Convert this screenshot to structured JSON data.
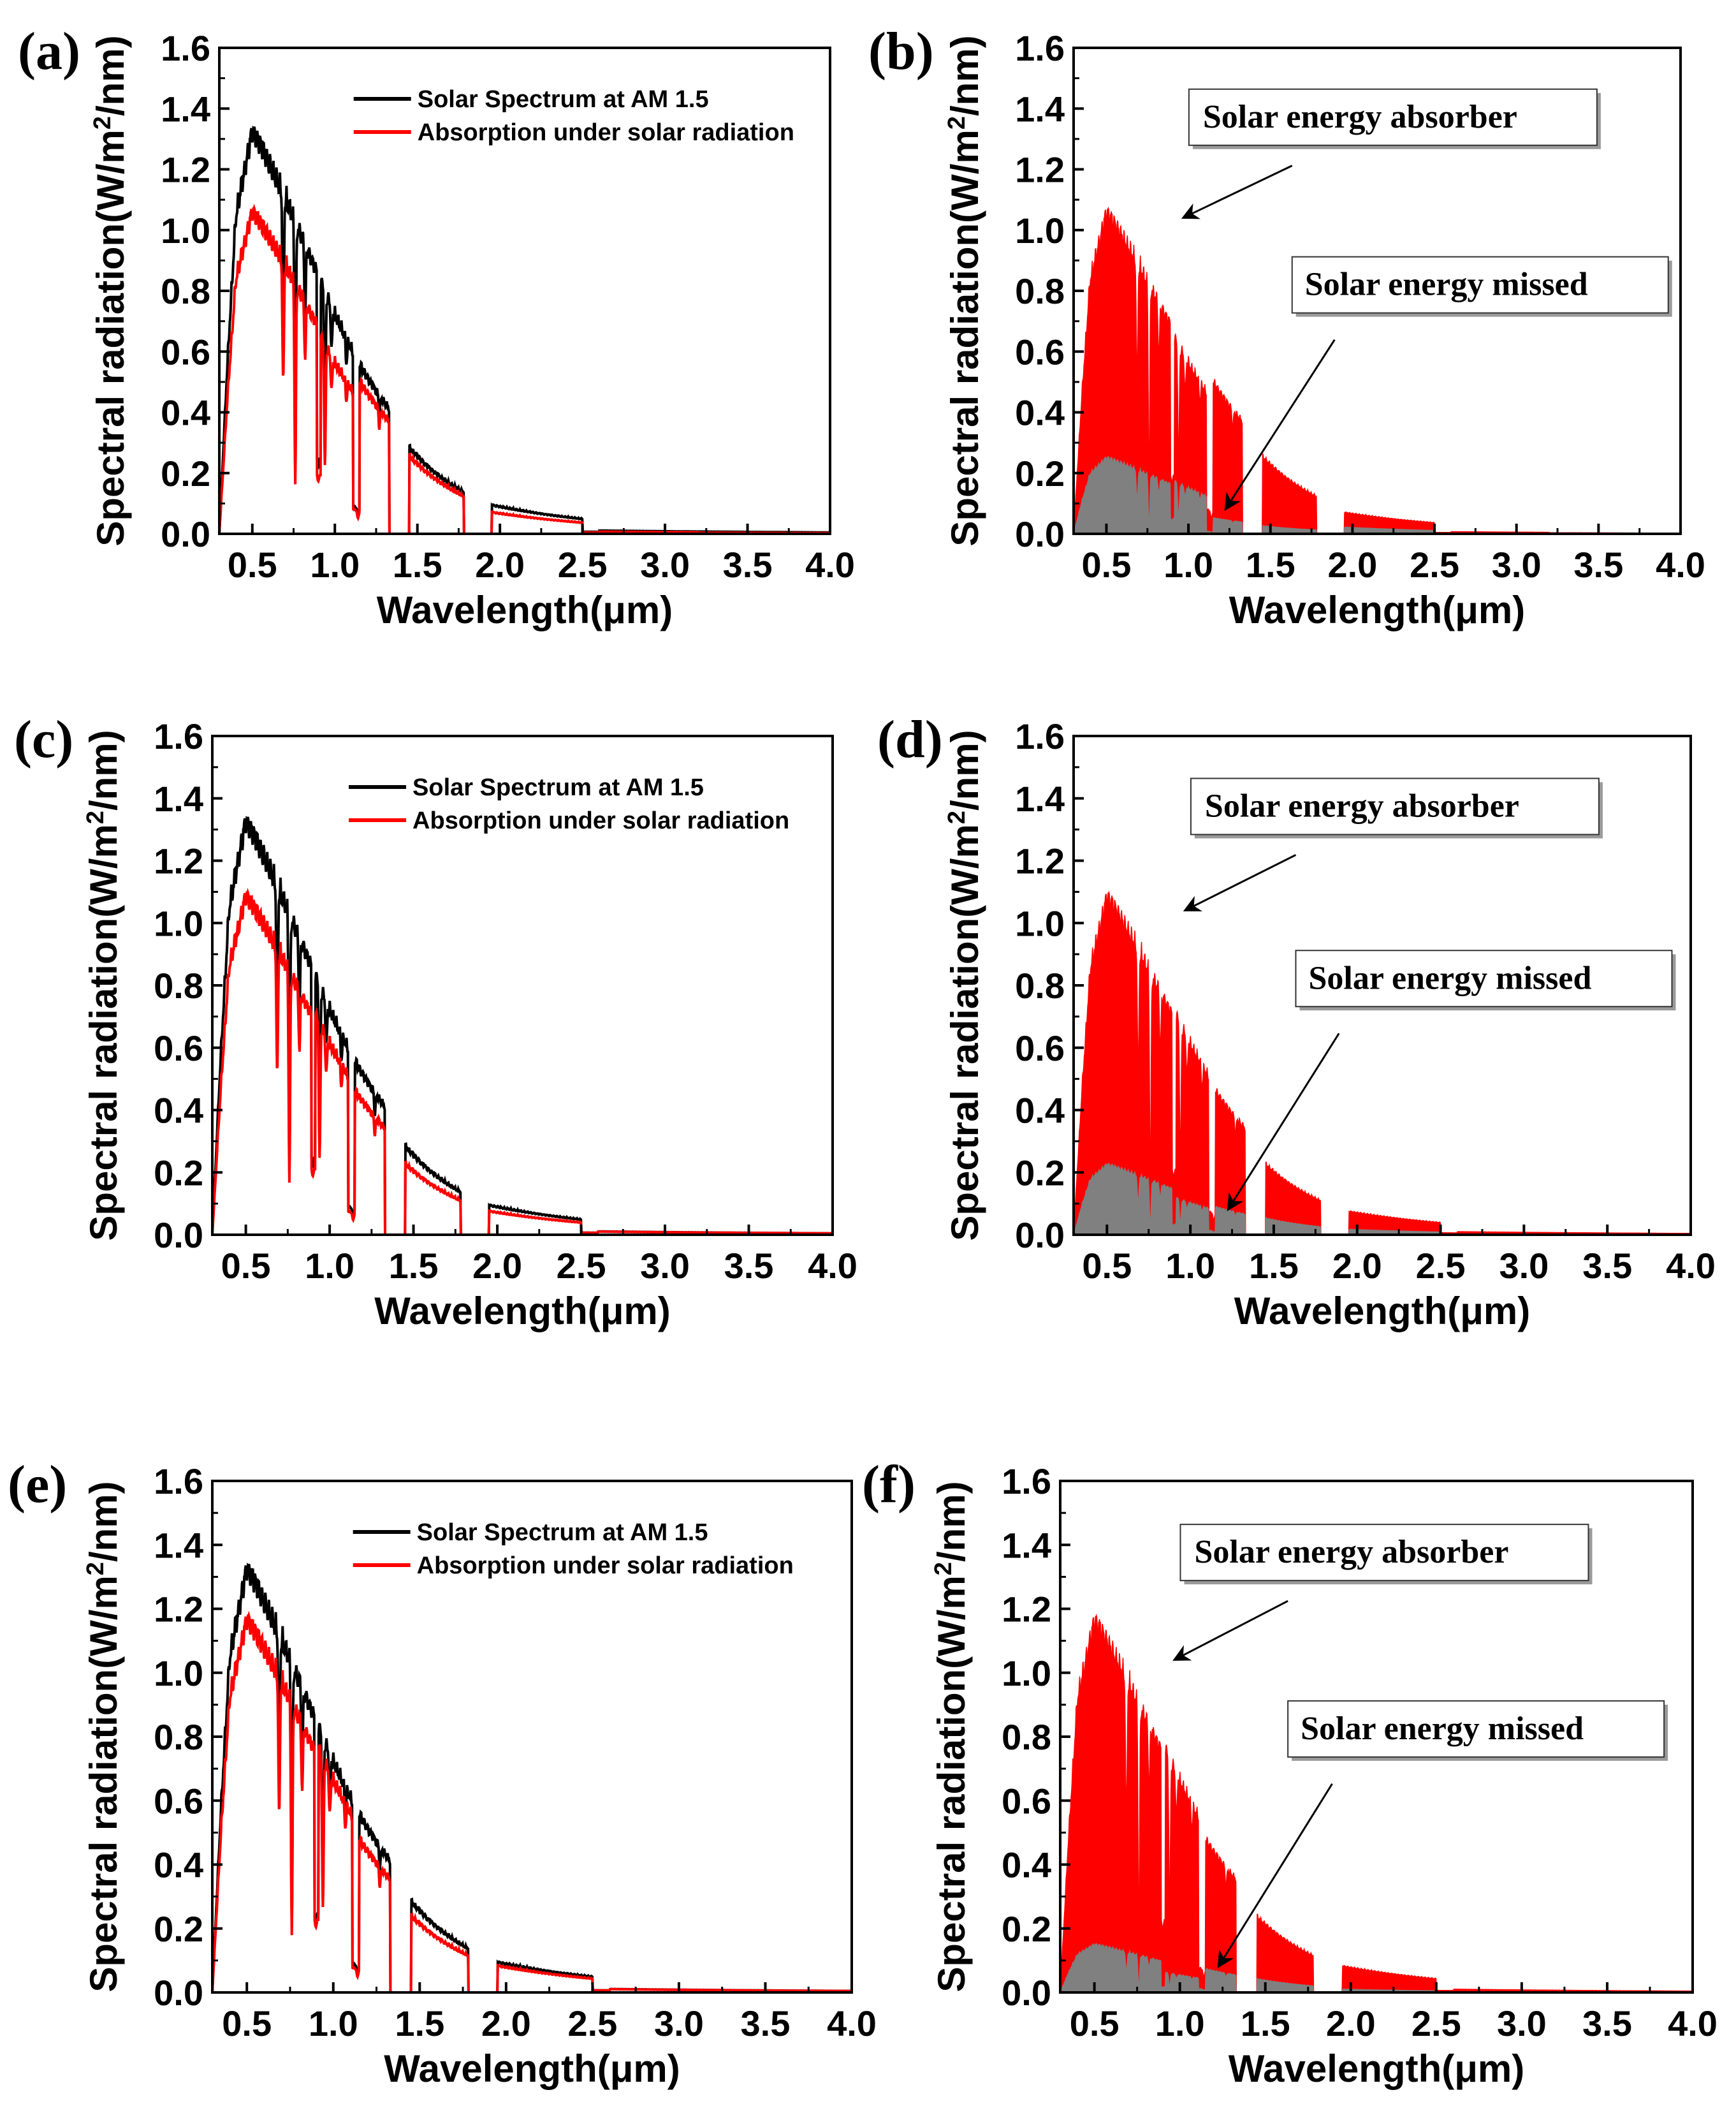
{
  "figure": {
    "axis_title_x": "Wavelength(μm)",
    "axis_title_y_prefix": "Spectral radiation(W/m",
    "axis_title_y_sup": "2",
    "axis_title_y_suffix": "/nm)",
    "legend_black": "Solar Spectrum at AM 1.5",
    "legend_red": "Absorption under solar radiation",
    "annotation_absorber": "Solar energy absorber",
    "annotation_missed": "Solar energy missed",
    "colors": {
      "solar": "#000000",
      "absorbed": "#ff0000",
      "missed": "#808080"
    }
  },
  "chart_data": [
    {
      "panel": "(a)",
      "type": "line",
      "xlim": [
        0.3,
        4.0
      ],
      "ylim": [
        0,
        1.6
      ],
      "xticks": [
        "0.5",
        "1.0",
        "1.5",
        "2.0",
        "2.5",
        "3.0",
        "3.5",
        "4.0"
      ],
      "yticks": [
        "0.0",
        "0.2",
        "0.4",
        "0.6",
        "0.8",
        "1.0",
        "1.2",
        "1.4",
        "1.6"
      ],
      "xlabel": "Wavelength(μm)",
      "ylabel": "Spectral radiation(W/m2/nm)",
      "legend": [
        "Solar Spectrum at AM 1.5",
        "Absorption under solar radiation"
      ],
      "absorption_ratio": [
        0.8,
        0.78,
        0.9,
        0.9,
        0.75,
        0.68,
        0.52
      ]
    },
    {
      "panel": "(b)",
      "type": "area",
      "xlim": [
        0.3,
        4.0
      ],
      "ylim": [
        0,
        1.6
      ],
      "xticks": [
        "0.5",
        "1.0",
        "1.5",
        "2.0",
        "2.5",
        "3.0",
        "3.5",
        "4.0"
      ],
      "yticks": [
        "0.0",
        "0.2",
        "0.4",
        "0.6",
        "0.8",
        "1.0",
        "1.2",
        "1.4",
        "1.6"
      ],
      "xlabel": "Wavelength(μm)",
      "ylabel": "Spectral radiation(W/m2/nm)",
      "annotations": [
        "Solar energy absorber",
        "Solar energy missed"
      ],
      "absorption_ratio": [
        0.8,
        0.78,
        0.9,
        0.9,
        0.75,
        0.68,
        0.52
      ]
    },
    {
      "panel": "(c)",
      "type": "line",
      "xlim": [
        0.3,
        4.0
      ],
      "ylim": [
        0,
        1.6
      ],
      "xticks": [
        "0.5",
        "1.0",
        "1.5",
        "2.0",
        "2.5",
        "3.0",
        "3.5",
        "4.0"
      ],
      "yticks": [
        "0.0",
        "0.2",
        "0.4",
        "0.6",
        "0.8",
        "1.0",
        "1.2",
        "1.4",
        "1.6"
      ],
      "xlabel": "Wavelength(μm)",
      "ylabel": "Spectral radiation(W/m2/nm)",
      "legend": [
        "Solar Spectrum at AM 1.5",
        "Absorption under solar radiation"
      ],
      "absorption_ratio": [
        0.82,
        0.85,
        0.83,
        0.8,
        0.8,
        0.95,
        0.96
      ]
    },
    {
      "panel": "(d)",
      "type": "area",
      "xlim": [
        0.3,
        4.0
      ],
      "ylim": [
        0,
        1.6
      ],
      "xticks": [
        "0.5",
        "1.0",
        "1.5",
        "2.0",
        "2.5",
        "3.0",
        "3.5",
        "4.0"
      ],
      "yticks": [
        "0.0",
        "0.2",
        "0.4",
        "0.6",
        "0.8",
        "1.0",
        "1.2",
        "1.4",
        "1.6"
      ],
      "xlabel": "Wavelength(μm)",
      "ylabel": "Spectral radiation(W/m2/nm)",
      "annotations": [
        "Solar energy absorber",
        "Solar energy missed"
      ],
      "absorption_ratio": [
        0.82,
        0.85,
        0.83,
        0.8,
        0.8,
        0.95,
        0.96
      ]
    },
    {
      "panel": "(e)",
      "type": "line",
      "xlim": [
        0.3,
        4.0
      ],
      "ylim": [
        0,
        1.6
      ],
      "xticks": [
        "0.5",
        "1.0",
        "1.5",
        "2.0",
        "2.5",
        "3.0",
        "3.5",
        "4.0"
      ],
      "yticks": [
        "0.0",
        "0.2",
        "0.4",
        "0.6",
        "0.8",
        "1.0",
        "1.2",
        "1.4",
        "1.6"
      ],
      "xlabel": "Wavelength(μm)",
      "ylabel": "Spectral radiation(W/m2/nm)",
      "legend": [
        "Solar Spectrum at AM 1.5",
        "Absorption under solar radiation"
      ],
      "absorption_ratio": [
        0.88,
        0.92,
        0.86,
        0.84,
        0.88,
        0.96,
        0.96
      ]
    },
    {
      "panel": "(f)",
      "type": "area",
      "xlim": [
        0.3,
        4.0
      ],
      "ylim": [
        0,
        1.6
      ],
      "xticks": [
        "0.5",
        "1.0",
        "1.5",
        "2.0",
        "2.5",
        "3.0",
        "3.5",
        "4.0"
      ],
      "yticks": [
        "0.0",
        "0.2",
        "0.4",
        "0.6",
        "0.8",
        "1.0",
        "1.2",
        "1.4",
        "1.6"
      ],
      "xlabel": "Wavelength(μm)",
      "ylabel": "Spectral radiation(W/m2/nm)",
      "annotations": [
        "Solar energy absorber",
        "Solar energy missed"
      ],
      "absorption_ratio": [
        0.88,
        0.92,
        0.86,
        0.84,
        0.88,
        0.96,
        0.96
      ]
    }
  ]
}
